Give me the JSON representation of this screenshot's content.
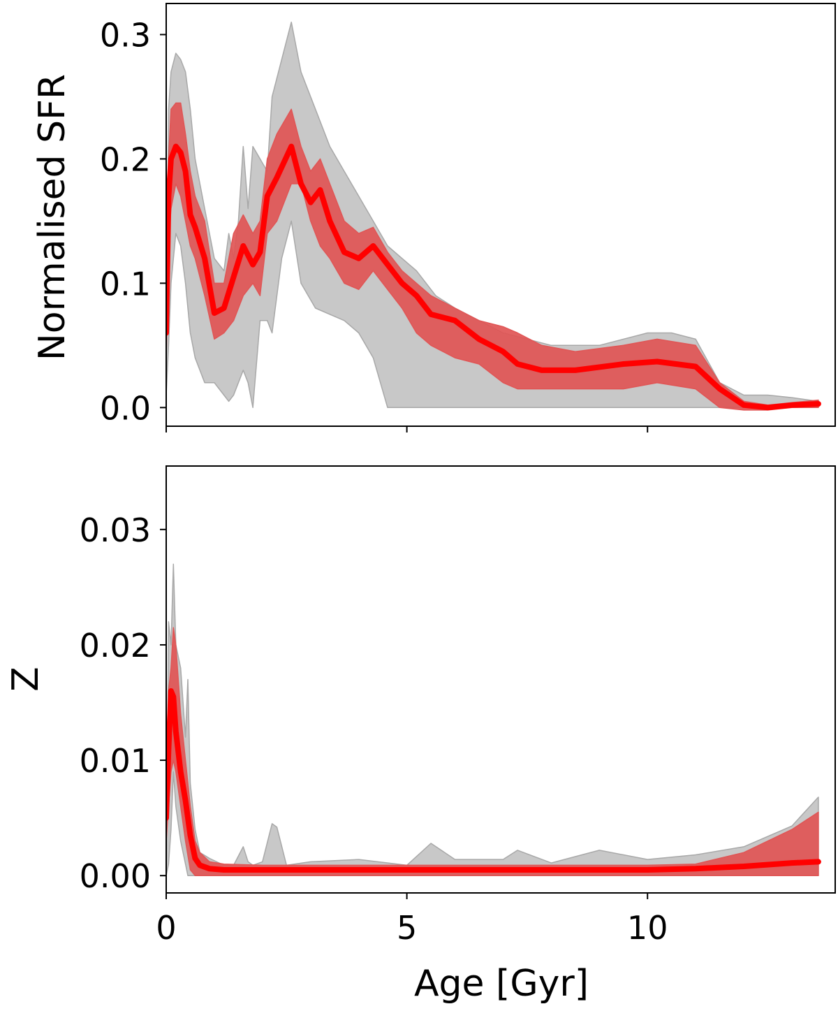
{
  "colors": {
    "grey_band": "#c8c8c8",
    "grey_edge": "#a8a8a8",
    "red_band": "#e05555",
    "red_line": "#ff0000",
    "axis": "#000000"
  },
  "x_axis": {
    "label": "Age [Gyr]",
    "range": [
      0,
      13.9
    ],
    "ticks": [
      0,
      5,
      10
    ],
    "tick_labels": [
      "0",
      "5",
      "10"
    ]
  },
  "chart_data": [
    {
      "type": "line",
      "ylabel": "Normalised SFR",
      "ylim": [
        -0.015,
        0.325
      ],
      "yticks": [
        0.0,
        0.1,
        0.2,
        0.3
      ],
      "ytick_labels": [
        "0.0",
        "0.1",
        "0.2",
        "0.3"
      ],
      "xlim": [
        0,
        13.9
      ],
      "x_ticks_labelled": false,
      "grid": false,
      "series": [
        {
          "kind": "band",
          "color": "grey",
          "x": [
            0.0,
            0.05,
            0.1,
            0.2,
            0.3,
            0.4,
            0.5,
            0.6,
            0.8,
            1.0,
            1.2,
            1.3,
            1.4,
            1.5,
            1.6,
            1.7,
            1.8,
            1.95,
            2.1,
            2.2,
            2.4,
            2.6,
            2.8,
            3.1,
            3.4,
            3.7,
            4.0,
            4.3,
            4.6,
            4.9,
            5.2,
            5.6,
            6.0,
            6.5,
            7.0,
            7.5,
            8.0,
            9.0,
            10.0,
            10.5,
            11.0,
            11.5,
            12.0,
            12.5,
            13.0,
            13.55
          ],
          "upper": [
            0.03,
            0.24,
            0.27,
            0.285,
            0.28,
            0.27,
            0.24,
            0.2,
            0.16,
            0.12,
            0.11,
            0.14,
            0.12,
            0.15,
            0.21,
            0.16,
            0.21,
            0.2,
            0.19,
            0.25,
            0.28,
            0.31,
            0.27,
            0.24,
            0.21,
            0.19,
            0.17,
            0.15,
            0.13,
            0.12,
            0.11,
            0.09,
            0.08,
            0.07,
            0.06,
            0.055,
            0.05,
            0.05,
            0.06,
            0.06,
            0.055,
            0.02,
            0.01,
            0.01,
            0.008,
            0.005
          ],
          "lower": [
            0.01,
            0.05,
            0.1,
            0.14,
            0.13,
            0.1,
            0.06,
            0.04,
            0.02,
            0.02,
            0.01,
            0.005,
            0.01,
            0.02,
            0.03,
            0.02,
            0.0,
            0.07,
            0.07,
            0.06,
            0.12,
            0.15,
            0.1,
            0.08,
            0.075,
            0.07,
            0.06,
            0.04,
            0.0,
            0.0,
            0.0,
            0.0,
            0.0,
            0.0,
            0.0,
            0.0,
            0.0,
            0.0,
            0.0,
            0.0,
            0.0,
            0.0,
            0.0,
            0.0,
            0.0,
            0.0
          ]
        },
        {
          "kind": "band",
          "color": "red",
          "x": [
            0.0,
            0.05,
            0.1,
            0.2,
            0.3,
            0.4,
            0.5,
            0.6,
            0.8,
            1.0,
            1.2,
            1.4,
            1.6,
            1.8,
            1.95,
            2.1,
            2.3,
            2.6,
            2.8,
            3.0,
            3.2,
            3.4,
            3.7,
            4.0,
            4.3,
            4.6,
            4.9,
            5.2,
            5.5,
            6.0,
            6.5,
            7.0,
            7.3,
            7.8,
            8.5,
            9.5,
            10.2,
            11.0,
            11.5,
            12.0,
            12.5,
            13.0,
            13.55
          ],
          "upper": [
            0.08,
            0.2,
            0.24,
            0.245,
            0.245,
            0.22,
            0.19,
            0.17,
            0.15,
            0.1,
            0.1,
            0.14,
            0.155,
            0.14,
            0.15,
            0.2,
            0.22,
            0.24,
            0.21,
            0.19,
            0.2,
            0.18,
            0.15,
            0.14,
            0.145,
            0.125,
            0.11,
            0.1,
            0.09,
            0.08,
            0.07,
            0.065,
            0.06,
            0.05,
            0.045,
            0.05,
            0.055,
            0.05,
            0.02,
            0.005,
            0.002,
            0.004,
            0.006
          ],
          "lower": [
            0.04,
            0.13,
            0.16,
            0.18,
            0.17,
            0.15,
            0.13,
            0.12,
            0.09,
            0.055,
            0.06,
            0.07,
            0.09,
            0.1,
            0.09,
            0.14,
            0.15,
            0.18,
            0.18,
            0.15,
            0.13,
            0.12,
            0.1,
            0.095,
            0.11,
            0.095,
            0.08,
            0.06,
            0.05,
            0.04,
            0.035,
            0.02,
            0.015,
            0.015,
            0.015,
            0.015,
            0.02,
            0.015,
            0.0,
            -0.002,
            -0.002,
            0.0,
            0.0
          ]
        },
        {
          "kind": "line",
          "color": "red",
          "x": [
            0.0,
            0.05,
            0.1,
            0.2,
            0.3,
            0.4,
            0.5,
            0.6,
            0.8,
            1.0,
            1.2,
            1.4,
            1.6,
            1.8,
            1.95,
            2.1,
            2.3,
            2.6,
            2.8,
            3.0,
            3.2,
            3.4,
            3.7,
            4.0,
            4.3,
            4.6,
            4.9,
            5.2,
            5.5,
            6.0,
            6.5,
            7.0,
            7.3,
            7.8,
            8.5,
            9.5,
            10.2,
            11.0,
            11.5,
            12.0,
            12.5,
            13.0,
            13.55
          ],
          "y": [
            0.06,
            0.17,
            0.2,
            0.21,
            0.205,
            0.19,
            0.155,
            0.145,
            0.12,
            0.076,
            0.08,
            0.105,
            0.13,
            0.115,
            0.125,
            0.17,
            0.185,
            0.21,
            0.18,
            0.165,
            0.175,
            0.15,
            0.125,
            0.12,
            0.13,
            0.115,
            0.1,
            0.09,
            0.075,
            0.07,
            0.055,
            0.045,
            0.035,
            0.03,
            0.03,
            0.035,
            0.037,
            0.033,
            0.015,
            0.002,
            0.0,
            0.002,
            0.003
          ]
        }
      ]
    },
    {
      "type": "line",
      "ylabel": "Z",
      "ylim": [
        -0.0015,
        0.0355
      ],
      "yticks": [
        0.0,
        0.01,
        0.02,
        0.03
      ],
      "ytick_labels": [
        "0.00",
        "0.01",
        "0.02",
        "0.03"
      ],
      "xlim": [
        0,
        13.9
      ],
      "grid": false,
      "series": [
        {
          "kind": "band",
          "color": "grey",
          "x": [
            0.0,
            0.05,
            0.1,
            0.15,
            0.2,
            0.3,
            0.4,
            0.45,
            0.5,
            0.6,
            0.7,
            0.9,
            1.2,
            1.4,
            1.6,
            1.7,
            1.8,
            2.0,
            2.2,
            2.3,
            2.5,
            3.0,
            4.0,
            5.0,
            5.5,
            6.0,
            7.0,
            7.3,
            8.0,
            9.0,
            10.0,
            11.0,
            12.0,
            13.0,
            13.55
          ],
          "upper": [
            0.0,
            0.022,
            0.02,
            0.027,
            0.02,
            0.018,
            0.012,
            0.017,
            0.008,
            0.004,
            0.002,
            0.0015,
            0.0009,
            0.0009,
            0.0025,
            0.0012,
            0.0009,
            0.0012,
            0.0045,
            0.0042,
            0.0009,
            0.0012,
            0.0014,
            0.0009,
            0.0028,
            0.0014,
            0.0014,
            0.0022,
            0.0011,
            0.0022,
            0.0014,
            0.0018,
            0.0025,
            0.0043,
            0.0068
          ],
          "lower": [
            0.0,
            0.001,
            0.004,
            0.009,
            0.006,
            0.003,
            0.001,
            0.0,
            0.0,
            0.0,
            0.0,
            0.0,
            0.0,
            0.0,
            0.0,
            0.0,
            0.0,
            0.0,
            0.0,
            0.0,
            0.0,
            0.0,
            0.0,
            0.0,
            0.0,
            0.0,
            0.0,
            0.0,
            0.0,
            0.0,
            0.0,
            0.0,
            0.0,
            0.0,
            0.0
          ]
        },
        {
          "kind": "band",
          "color": "red",
          "x": [
            0.0,
            0.05,
            0.1,
            0.15,
            0.2,
            0.3,
            0.4,
            0.5,
            0.6,
            0.7,
            0.9,
            1.2,
            2.0,
            4.0,
            6.0,
            8.0,
            10.0,
            11.0,
            12.0,
            13.0,
            13.55
          ],
          "upper": [
            0.006,
            0.016,
            0.018,
            0.0215,
            0.02,
            0.014,
            0.01,
            0.006,
            0.003,
            0.002,
            0.0012,
            0.001,
            0.0009,
            0.0009,
            0.0009,
            0.0009,
            0.0009,
            0.001,
            0.002,
            0.004,
            0.0055
          ],
          "lower": [
            0.003,
            0.006,
            0.009,
            0.01,
            0.009,
            0.006,
            0.003,
            0.0005,
            0.0,
            0.0,
            0.0,
            0.0,
            0.0,
            0.0,
            0.0,
            0.0,
            0.0,
            0.0,
            0.0,
            0.0,
            0.0
          ]
        },
        {
          "kind": "line",
          "color": "red",
          "x": [
            0.0,
            0.05,
            0.1,
            0.15,
            0.2,
            0.3,
            0.4,
            0.5,
            0.6,
            0.7,
            0.9,
            1.2,
            2.0,
            4.0,
            6.0,
            8.0,
            10.0,
            11.0,
            12.0,
            13.0,
            13.55
          ],
          "y": [
            0.005,
            0.011,
            0.016,
            0.0155,
            0.0125,
            0.009,
            0.0065,
            0.0035,
            0.0015,
            0.0009,
            0.0006,
            0.0005,
            0.0005,
            0.0005,
            0.0005,
            0.0005,
            0.0005,
            0.0006,
            0.0008,
            0.0011,
            0.0012
          ]
        }
      ]
    }
  ]
}
